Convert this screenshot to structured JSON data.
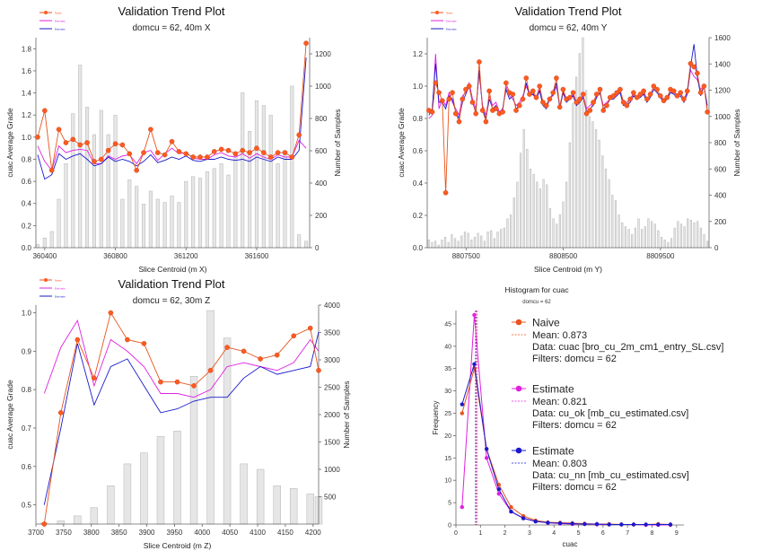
{
  "colors": {
    "naive": "#e8541c",
    "naive_dot": "#ff5a1f",
    "estimate_ok": "#e020e0",
    "estimate_nn": "#1a1acc",
    "bar_fill": "#e6e6e6",
    "bar_stroke": "#bdbdbd",
    "naive_label": "#e02020"
  },
  "chart_data": [
    {
      "type": "line",
      "title": "Validation Trend Plot",
      "subtitle": "domcu = 62, 40m X",
      "xlabel": "Slice Centroid (m X)",
      "ylabel": "cuac Average Grade",
      "y2label": "Number of Samples",
      "xlim": [
        360350,
        361900
      ],
      "ylim": [
        0,
        1.9
      ],
      "y2lim": [
        0,
        1300
      ],
      "xticks": [
        "360400",
        "360800",
        "361200",
        "361600"
      ],
      "yticks": [
        "0.0",
        "0.2",
        "0.4",
        "0.6",
        "0.8",
        "1.0",
        "1.2",
        "1.4",
        "1.6",
        "1.8"
      ],
      "y2ticks": [
        "0",
        "200",
        "400",
        "600",
        "800",
        "1000",
        "1200"
      ],
      "x": [
        360360,
        360400,
        360440,
        360480,
        360520,
        360560,
        360600,
        360640,
        360680,
        360720,
        360760,
        360800,
        360840,
        360880,
        360920,
        360960,
        361000,
        361040,
        361080,
        361120,
        361160,
        361200,
        361240,
        361280,
        361320,
        361360,
        361400,
        361440,
        361480,
        361520,
        361560,
        361600,
        361640,
        361680,
        361720,
        361760,
        361800,
        361840,
        361880
      ],
      "bars": [
        20,
        60,
        100,
        300,
        520,
        830,
        1130,
        870,
        700,
        850,
        700,
        820,
        300,
        420,
        380,
        270,
        350,
        300,
        280,
        320,
        280,
        410,
        440,
        430,
        470,
        490,
        520,
        450,
        580,
        960,
        720,
        910,
        880,
        820,
        520,
        600,
        1000,
        80,
        40
      ],
      "series": [
        {
          "name": "Naive",
          "values": [
            1.0,
            1.24,
            0.7,
            1.07,
            0.95,
            0.98,
            0.93,
            0.95,
            0.78,
            0.8,
            0.88,
            0.94,
            0.93,
            0.85,
            0.7,
            0.86,
            1.07,
            0.86,
            0.84,
            0.96,
            0.87,
            0.85,
            0.82,
            0.82,
            0.82,
            0.87,
            0.89,
            0.88,
            0.85,
            0.88,
            0.86,
            0.9,
            0.86,
            0.82,
            0.86,
            0.86,
            0.82,
            1.02,
            1.85
          ]
        },
        {
          "name": "Estimate",
          "values": [
            0.92,
            0.78,
            0.7,
            0.92,
            0.86,
            0.88,
            0.89,
            0.88,
            0.76,
            0.76,
            0.83,
            0.8,
            0.83,
            0.84,
            0.76,
            0.86,
            0.88,
            0.79,
            0.85,
            0.9,
            0.85,
            0.86,
            0.81,
            0.8,
            0.8,
            0.84,
            0.86,
            0.83,
            0.82,
            0.85,
            0.81,
            0.85,
            0.82,
            0.8,
            0.84,
            0.82,
            0.82,
            0.97,
            0.9
          ]
        },
        {
          "name": "Estimate",
          "values": [
            0.84,
            0.62,
            0.66,
            0.85,
            0.8,
            0.83,
            0.85,
            0.8,
            0.74,
            0.76,
            0.82,
            0.78,
            0.8,
            0.78,
            0.74,
            0.78,
            0.84,
            0.77,
            0.79,
            0.82,
            0.8,
            0.83,
            0.79,
            0.78,
            0.8,
            0.8,
            0.82,
            0.8,
            0.79,
            0.8,
            0.78,
            0.82,
            0.8,
            0.78,
            0.82,
            0.8,
            0.8,
            0.88,
            1.72
          ]
        }
      ],
      "legend": [
        "Naive",
        "Estimate",
        "Estimate"
      ]
    },
    {
      "type": "line",
      "title": "Validation Trend Plot",
      "subtitle": "domcu = 62, 40m Y",
      "xlabel": "Slice Centroid (m Y)",
      "ylabel": "cuac Average Grade",
      "y2label": "Number of Samples",
      "xlim": [
        8807100,
        8810000
      ],
      "ylim": [
        0,
        1.3
      ],
      "y2lim": [
        0,
        1600
      ],
      "xticks": [
        "8807500",
        "8808500",
        "8809500"
      ],
      "yticks": [
        "0.0",
        "0.2",
        "0.4",
        "0.6",
        "0.8",
        "1.0",
        "1.2"
      ],
      "y2ticks": [
        "0",
        "200",
        "400",
        "600",
        "800",
        "1000",
        "1200",
        "1400",
        "1600"
      ],
      "bars": [
        60,
        40,
        50,
        20,
        60,
        80,
        40,
        100,
        70,
        50,
        90,
        120,
        110,
        60,
        80,
        110,
        90,
        50,
        120,
        130,
        70,
        120,
        140,
        150,
        220,
        250,
        380,
        500,
        720,
        900,
        750,
        600,
        560,
        500,
        450,
        520,
        480,
        300,
        220,
        180,
        250,
        350,
        500,
        800,
        1100,
        1300,
        1480,
        1600,
        1200,
        1000,
        960,
        900,
        820,
        700,
        600,
        520,
        400,
        360,
        250,
        190,
        160,
        140,
        100,
        150,
        220,
        140,
        160,
        220,
        200,
        180,
        130,
        80,
        60,
        40,
        70,
        150,
        200,
        180,
        160,
        220,
        210,
        190,
        200,
        150,
        100,
        50
      ],
      "series": [
        {
          "name": "Naive",
          "values": [
            0.85,
            0.84,
            1.02,
            0.96,
            0.91,
            0.34,
            0.92,
            0.96,
            0.83,
            0.78,
            0.92,
            0.98,
            1.0,
            0.9,
            0.83,
            1.15,
            0.85,
            0.78,
            0.97,
            0.85,
            0.86,
            0.83,
            0.84,
            1.02,
            0.96,
            0.95,
            0.85,
            0.88,
            0.92,
            1.05,
            0.95,
            0.97,
            0.93,
            1.0,
            0.9,
            0.88,
            0.92,
            0.96,
            1.05,
            0.87,
            0.98,
            0.92,
            0.93,
            0.96,
            0.9,
            0.92,
            0.95,
            0.83,
            0.85,
            0.9,
            0.95,
            0.98,
            0.85,
            0.88,
            0.93,
            0.94,
            0.96,
            0.98,
            0.9,
            0.88,
            0.92,
            0.96,
            0.93,
            0.95,
            0.97,
            0.92,
            0.95,
            1.0,
            0.98,
            0.94,
            0.91,
            0.93,
            0.98,
            0.97,
            0.94,
            0.96,
            0.92,
            0.97,
            1.14,
            1.12,
            1.08,
            0.96,
            1.0,
            0.84
          ]
        },
        {
          "name": "Estimate",
          "values": [
            0.8,
            0.82,
            1.2,
            0.86,
            0.92,
            0.88,
            0.96,
            0.9,
            0.86,
            0.82,
            0.94,
            0.96,
            1.02,
            0.92,
            0.86,
            1.08,
            0.88,
            0.82,
            0.94,
            0.88,
            0.9,
            0.84,
            0.86,
            1.0,
            0.94,
            0.92,
            0.88,
            0.9,
            0.94,
            1.0,
            0.95,
            0.96,
            0.92,
            0.98,
            0.9,
            0.88,
            0.93,
            0.94,
            1.0,
            0.88,
            0.96,
            0.92,
            0.92,
            0.95,
            0.9,
            0.92,
            0.94,
            0.86,
            0.88,
            0.9,
            0.94,
            0.96,
            0.88,
            0.9,
            0.92,
            0.93,
            0.95,
            0.96,
            0.9,
            0.9,
            0.92,
            0.95,
            0.93,
            0.94,
            0.96,
            0.92,
            0.94,
            0.98,
            0.96,
            0.94,
            0.92,
            0.93,
            0.96,
            0.96,
            0.94,
            0.95,
            0.92,
            0.96,
            1.1,
            1.06,
            1.04,
            0.98,
            1.0,
            0.86
          ]
        },
        {
          "name": "Estimate",
          "values": [
            0.82,
            0.86,
            1.14,
            0.9,
            0.9,
            0.86,
            0.94,
            0.92,
            0.84,
            0.8,
            0.9,
            0.95,
            1.0,
            0.9,
            0.84,
            1.1,
            0.86,
            0.8,
            0.92,
            0.86,
            0.88,
            0.82,
            0.86,
            0.98,
            0.92,
            0.94,
            0.86,
            0.88,
            0.92,
            1.02,
            0.94,
            0.95,
            0.92,
            0.97,
            0.88,
            0.86,
            0.92,
            0.95,
            1.02,
            0.86,
            0.96,
            0.9,
            0.92,
            0.94,
            0.88,
            0.9,
            0.93,
            0.84,
            0.86,
            0.88,
            0.93,
            0.96,
            0.86,
            0.88,
            0.92,
            0.92,
            0.94,
            0.96,
            0.88,
            0.88,
            0.9,
            0.94,
            0.92,
            0.93,
            0.95,
            0.9,
            0.93,
            0.98,
            0.96,
            0.93,
            0.9,
            0.92,
            0.96,
            0.95,
            0.93,
            0.94,
            0.9,
            0.95,
            1.12,
            1.26,
            1.06,
            0.94,
            1.0,
            0.88
          ]
        }
      ],
      "legend": [
        "Naive",
        "Estimate",
        "Estimate"
      ]
    },
    {
      "type": "line",
      "title": "Validation Trend Plot",
      "subtitle": "domcu = 62, 30m Z",
      "xlabel": "Slice Centroid (m Z)",
      "ylabel": "cuac Average Grade",
      "y2label": "Number of Samples",
      "xlim": [
        3700,
        4210
      ],
      "ylim": [
        0.45,
        1.02
      ],
      "y2lim": [
        0,
        4000
      ],
      "xticks": [
        "3700",
        "3750",
        "3800",
        "3850",
        "3900",
        "3950",
        "4000",
        "4050",
        "4100",
        "4150",
        "4200"
      ],
      "yticks": [
        "0.5",
        "0.6",
        "0.7",
        "0.8",
        "0.9",
        "1.0"
      ],
      "y2ticks": [
        "500",
        "1000",
        "1500",
        "2000",
        "2500",
        "3000",
        "3500",
        "4000"
      ],
      "x": [
        3715,
        3745,
        3775,
        3805,
        3835,
        3865,
        3895,
        3925,
        3955,
        3985,
        4015,
        4045,
        4075,
        4105,
        4135,
        4165,
        4195,
        4210
      ],
      "bars": [
        20,
        60,
        150,
        300,
        700,
        1100,
        1300,
        1600,
        1700,
        2700,
        3900,
        3400,
        1100,
        1000,
        700,
        650,
        550,
        500
      ],
      "series": [
        {
          "name": "Naive",
          "values": [
            0.44,
            0.74,
            0.93,
            0.83,
            1.0,
            0.93,
            0.92,
            0.82,
            0.82,
            0.81,
            0.85,
            0.91,
            0.9,
            0.88,
            0.89,
            0.94,
            0.96,
            0.85
          ]
        },
        {
          "name": "Estimate",
          "values": [
            0.79,
            0.91,
            0.98,
            0.81,
            0.93,
            0.9,
            0.86,
            0.79,
            0.79,
            0.78,
            0.8,
            0.86,
            0.87,
            0.86,
            0.85,
            0.87,
            0.93,
            0.9
          ]
        },
        {
          "name": "Estimate",
          "values": [
            0.5,
            0.7,
            0.92,
            0.76,
            0.86,
            0.88,
            0.81,
            0.74,
            0.75,
            0.77,
            0.78,
            0.78,
            0.83,
            0.86,
            0.84,
            0.85,
            0.86,
            0.95
          ]
        }
      ],
      "legend": [
        "Naive",
        "Estimate",
        "Estimate"
      ]
    },
    {
      "type": "line",
      "title": "Histogram for cuac",
      "subtitle": "domcu = 62",
      "xlabel": "cuac",
      "ylabel": "Frequency",
      "xlim": [
        0,
        9.3
      ],
      "ylim": [
        0,
        48
      ],
      "xticks": [
        "0",
        "1",
        "2",
        "3",
        "4",
        "5",
        "6",
        "7",
        "8",
        "9"
      ],
      "yticks": [
        "0",
        "5",
        "10",
        "15",
        "20",
        "25",
        "30",
        "35",
        "40",
        "45"
      ],
      "x": [
        0.25,
        0.75,
        1.25,
        1.75,
        2.25,
        2.75,
        3.25,
        3.75,
        4.25,
        4.75,
        5.25,
        5.75,
        6.25,
        6.75,
        7.25,
        7.75,
        8.25,
        8.75
      ],
      "series": [
        {
          "name": "Naive",
          "mean": 0.873,
          "values": [
            25,
            35,
            17,
            9,
            4,
            2,
            1,
            0.6,
            0.5,
            0.4,
            0.3,
            0.2,
            0.2,
            0.1,
            0.1,
            0.1,
            0.2,
            0.1
          ]
        },
        {
          "name": "Estimate",
          "mean": 0.821,
          "values": [
            4,
            47,
            15,
            7,
            3,
            1.5,
            0.8,
            0.5,
            0.3,
            0.2,
            0.2,
            0.1,
            0.1,
            0.1,
            0.1,
            0,
            0,
            0
          ]
        },
        {
          "name": "Estimate",
          "mean": 0.803,
          "values": [
            27,
            36,
            17,
            8,
            3,
            1.5,
            0.8,
            0.5,
            0.4,
            0.3,
            0.2,
            0.2,
            0.1,
            0.1,
            0.1,
            0.1,
            0.1,
            0.1
          ]
        }
      ],
      "legend": [
        {
          "label": "Naive",
          "mean": "Mean: 0.873",
          "data": "Data: cuac [bro_cu_2m_cm1_entry_SL.csv]",
          "filters": "Filters: domcu = 62"
        },
        {
          "label": "Estimate",
          "mean": "Mean: 0.821",
          "data": "Data: cu_ok [mb_cu_estimated.csv]",
          "filters": "Filters: domcu = 62"
        },
        {
          "label": "Estimate",
          "mean": "Mean: 0.803",
          "data": "Data: cu_nn [mb_cu_estimated.csv]",
          "filters": "Filters: domcu = 62"
        }
      ]
    }
  ]
}
